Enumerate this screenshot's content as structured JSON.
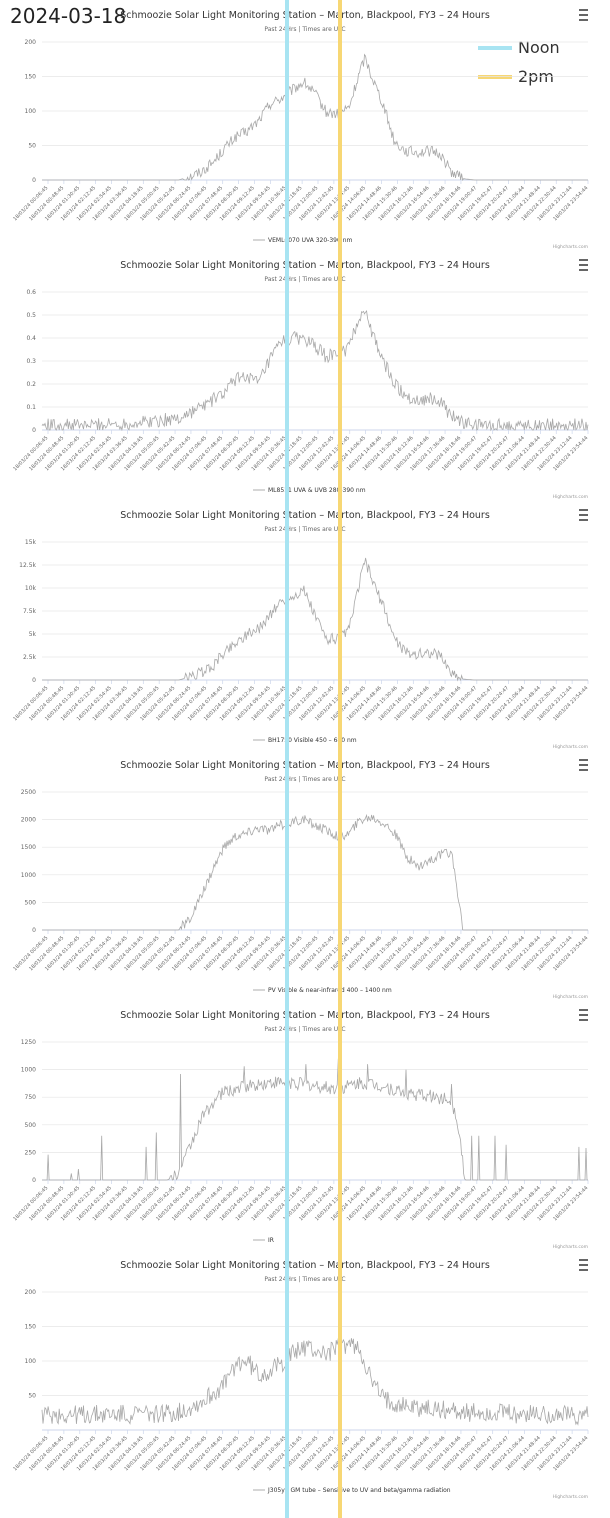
{
  "page": {
    "date": "2024-03-18",
    "legend": [
      {
        "label": "Noon",
        "color": "#a8e4f2"
      },
      {
        "label": "2pm",
        "color": "#f7d774"
      }
    ]
  },
  "chart_data": [
    {
      "type": "line",
      "title": "Schmoozie Solar Light Monitoring Station – Marton, Blackpool, FY3 – 24 Hours",
      "subtitle": "Past 24Hrs | Times are UTC",
      "series_name": "VEML6070 UVA 320-390 nm",
      "credits": "Highcharts.com",
      "ylim": [
        0,
        200
      ],
      "yticks": [
        0,
        50,
        100,
        150,
        200
      ],
      "ytick_labels": [
        "0",
        "50",
        "100",
        "150",
        "200"
      ],
      "xtick_labels": [
        "18/03/24 00:06:45",
        "18/03/24 00:48:45",
        "18/03/24 01:30:45",
        "18/03/24 02:12:45",
        "18/03/24 02:54:45",
        "18/03/24 03:36:45",
        "18/03/24 04:18:45",
        "18/03/24 05:00:45",
        "18/03/24 05:42:45",
        "18/03/24 06:24:45",
        "18/03/24 07:06:45",
        "18/03/24 07:48:45",
        "18/03/24 08:30:45",
        "18/03/24 09:12:45",
        "18/03/24 09:54:45",
        "18/03/24 10:36:45",
        "18/03/24 11:18:45",
        "18/03/24 12:00:45",
        "18/03/24 12:42:45",
        "18/03/24 13:24:45",
        "18/03/24 14:06:45",
        "18/03/24 14:48:46",
        "18/03/24 15:30:46",
        "18/03/24 16:12:46",
        "18/03/24 16:54:46",
        "18/03/24 17:36:46",
        "18/03/24 18:18:46",
        "18/03/24 19:00:47",
        "18/03/24 19:42:47",
        "18/03/24 20:24:47",
        "18/03/24 21:06:44",
        "18/03/24 21:48:44",
        "18/03/24 22:30:44",
        "18/03/24 23:12:44",
        "18/03/24 23:54:44"
      ],
      "x_hours": [
        0,
        2,
        4,
        6,
        6.5,
        7,
        7.5,
        8,
        8.5,
        9,
        9.5,
        10,
        10.5,
        11,
        11.5,
        12,
        12.5,
        13,
        13.5,
        14,
        14.2,
        14.5,
        15,
        15.5,
        16,
        16.5,
        17,
        17.5,
        18,
        18.5,
        19,
        21,
        24
      ],
      "values": [
        0,
        0,
        0,
        0,
        5,
        12,
        25,
        45,
        62,
        70,
        85,
        110,
        118,
        130,
        142,
        125,
        98,
        95,
        105,
        160,
        178,
        150,
        110,
        55,
        42,
        40,
        42,
        38,
        12,
        2,
        0,
        0,
        0
      ],
      "noise": 8
    },
    {
      "type": "line",
      "title": "Schmoozie Solar Light Monitoring Station – Marton, Blackpool, FY3 – 24 Hours",
      "subtitle": "Past 24Hrs | Times are UTC",
      "series_name": "ML8511 UVA & UVB 280-390 nm",
      "credits": "Highcharts.com",
      "ylim": [
        0,
        0.6
      ],
      "yticks": [
        0,
        0.1,
        0.2,
        0.3,
        0.4,
        0.5,
        0.6
      ],
      "ytick_labels": [
        "0",
        "0.1",
        "0.2",
        "0.3",
        "0.4",
        "0.5",
        "0.6"
      ],
      "xtick_labels": [
        "18/03/24 00:06:45",
        "18/03/24 00:48:45",
        "18/03/24 01:30:45",
        "18/03/24 02:12:45",
        "18/03/24 02:54:45",
        "18/03/24 03:36:45",
        "18/03/24 04:18:45",
        "18/03/24 05:00:45",
        "18/03/24 05:42:45",
        "18/03/24 06:24:45",
        "18/03/24 07:06:45",
        "18/03/24 07:48:45",
        "18/03/24 08:30:45",
        "18/03/24 09:12:45",
        "18/03/24 09:54:45",
        "18/03/24 10:36:45",
        "18/03/24 11:18:45",
        "18/03/24 12:00:45",
        "18/03/24 12:42:45",
        "18/03/24 13:24:45",
        "18/03/24 14:06:45",
        "18/03/24 14:48:46",
        "18/03/24 15:30:46",
        "18/03/24 16:12:46",
        "18/03/24 16:54:46",
        "18/03/24 17:36:46",
        "18/03/24 18:18:46",
        "18/03/24 19:00:47",
        "18/03/24 19:42:47",
        "18/03/24 20:24:47",
        "18/03/24 21:06:44",
        "18/03/24 21:48:44",
        "18/03/24 22:30:44",
        "18/03/24 23:12:44",
        "18/03/24 23:54:44"
      ],
      "x_hours": [
        0,
        2,
        4,
        6,
        7,
        8,
        8.5,
        9,
        9.5,
        10,
        10.5,
        11,
        11.5,
        12,
        12.5,
        13,
        13.5,
        14,
        14.2,
        14.5,
        15,
        15.5,
        16,
        16.5,
        17,
        17.5,
        18,
        18.5,
        19,
        21,
        24
      ],
      "values": [
        0.02,
        0.02,
        0.03,
        0.05,
        0.1,
        0.16,
        0.22,
        0.24,
        0.2,
        0.3,
        0.38,
        0.4,
        0.4,
        0.36,
        0.32,
        0.33,
        0.36,
        0.5,
        0.53,
        0.42,
        0.3,
        0.2,
        0.15,
        0.13,
        0.14,
        0.12,
        0.06,
        0.03,
        0.02,
        0.02,
        0.02
      ],
      "noise": 0.03
    },
    {
      "type": "line",
      "title": "Schmoozie Solar Light Monitoring Station – Marton, Blackpool, FY3 – 24 Hours",
      "subtitle": "Past 24Hrs | Times are UTC",
      "series_name": "BH1750 Visible 450 – 680 nm",
      "credits": "Highcharts.com",
      "ylim": [
        0,
        15000
      ],
      "yticks": [
        0,
        2500,
        5000,
        7500,
        10000,
        12500,
        15000
      ],
      "ytick_labels": [
        "0",
        "2.5k",
        "5k",
        "7.5k",
        "10k",
        "12.5k",
        "15k"
      ],
      "xtick_labels": [
        "18/03/24 00:06:45",
        "18/03/24 00:48:45",
        "18/03/24 01:30:45",
        "18/03/24 02:12:45",
        "18/03/24 02:54:45",
        "18/03/24 03:36:45",
        "18/03/24 04:18:45",
        "18/03/24 05:00:45",
        "18/03/24 05:42:45",
        "18/03/24 06:24:45",
        "18/03/24 07:06:45",
        "18/03/24 07:48:45",
        "18/03/24 08:30:45",
        "18/03/24 09:12:45",
        "18/03/24 09:54:45",
        "18/03/24 10:36:45",
        "18/03/24 11:18:45",
        "18/03/24 12:00:45",
        "18/03/24 12:42:45",
        "18/03/24 13:24:45",
        "18/03/24 14:06:45",
        "18/03/24 14:48:46",
        "18/03/24 15:30:46",
        "18/03/24 16:12:46",
        "18/03/24 16:54:46",
        "18/03/24 17:36:46",
        "18/03/24 18:18:46",
        "18/03/24 19:00:47",
        "18/03/24 19:42:47",
        "18/03/24 20:24:47",
        "18/03/24 21:06:44",
        "18/03/24 21:48:44",
        "18/03/24 22:30:44",
        "18/03/24 23:12:44",
        "18/03/24 23:54:44"
      ],
      "x_hours": [
        0,
        2,
        4,
        6,
        6.5,
        7,
        7.5,
        8,
        8.5,
        9,
        9.5,
        10,
        10.5,
        11,
        11.5,
        12,
        12.5,
        13,
        13.5,
        14,
        14.2,
        14.5,
        15,
        15.5,
        16,
        16.5,
        17,
        17.5,
        18,
        18.5,
        19,
        21,
        24
      ],
      "values": [
        0,
        0,
        0,
        0,
        300,
        800,
        1500,
        3000,
        4000,
        5000,
        5500,
        7000,
        8500,
        9000,
        9800,
        7000,
        4500,
        4500,
        5500,
        11000,
        13000,
        11000,
        8000,
        4500,
        3000,
        2800,
        3000,
        2700,
        800,
        100,
        0,
        0,
        0
      ],
      "noise": 600
    },
    {
      "type": "line",
      "title": "Schmoozie Solar Light Monitoring Station – Marton, Blackpool, FY3 – 24 Hours",
      "subtitle": "Past 24Hrs | Times are UTC",
      "series_name": "PV Visible & near-infrared 400 – 1400 nm",
      "credits": "Highcharts.com",
      "ylim": [
        0,
        2500
      ],
      "yticks": [
        0,
        500,
        1000,
        1500,
        2000,
        2500
      ],
      "ytick_labels": [
        "0",
        "500",
        "1000",
        "1500",
        "2000",
        "2500"
      ],
      "xtick_labels": [
        "18/03/24 00:06:45",
        "18/03/24 00:48:45",
        "18/03/24 01:30:45",
        "18/03/24 02:12:45",
        "18/03/24 02:54:45",
        "18/03/24 03:36:45",
        "18/03/24 04:18:45",
        "18/03/24 05:00:45",
        "18/03/24 05:42:45",
        "18/03/24 06:24:45",
        "18/03/24 07:06:45",
        "18/03/24 07:48:45",
        "18/03/24 08:30:45",
        "18/03/24 09:12:45",
        "18/03/24 09:54:45",
        "18/03/24 10:36:45",
        "18/03/24 11:18:45",
        "18/03/24 12:00:45",
        "18/03/24 12:42:45",
        "18/03/24 13:24:45",
        "18/03/24 14:06:45",
        "18/03/24 14:48:46",
        "18/03/24 15:30:46",
        "18/03/24 16:12:46",
        "18/03/24 16:54:46",
        "18/03/24 17:36:46",
        "18/03/24 18:18:46",
        "18/03/24 19:00:47",
        "18/03/24 19:42:47",
        "18/03/24 20:24:47",
        "18/03/24 21:06:44",
        "18/03/24 21:48:44",
        "18/03/24 22:30:44",
        "18/03/24 23:12:44",
        "18/03/24 23:54:44"
      ],
      "x_hours": [
        0,
        2,
        4,
        6,
        6.5,
        7,
        7.5,
        8,
        8.5,
        9,
        9.5,
        10,
        10.5,
        11,
        11.5,
        12,
        12.5,
        13,
        13.5,
        14,
        14.5,
        15,
        15.5,
        16,
        16.5,
        17,
        17.5,
        18,
        18.2,
        18.5,
        19,
        21,
        24
      ],
      "values": [
        0,
        0,
        0,
        0,
        200,
        600,
        1100,
        1500,
        1700,
        1750,
        1850,
        1800,
        1900,
        1950,
        2000,
        1900,
        1800,
        1700,
        1750,
        2000,
        2050,
        1950,
        1750,
        1350,
        1150,
        1250,
        1350,
        1400,
        900,
        0,
        0,
        0,
        0
      ],
      "noise": 90
    },
    {
      "type": "line",
      "title": "Schmoozie Solar Light Monitoring Station – Marton, Blackpool, FY3 – 24 Hours",
      "subtitle": "Past 24Hrs | Times are UTC",
      "series_name": "IR",
      "credits": "Highcharts.com",
      "ylim": [
        0,
        1250
      ],
      "yticks": [
        0,
        250,
        500,
        750,
        1000,
        1250
      ],
      "ytick_labels": [
        "0",
        "250",
        "500",
        "750",
        "1000",
        "1250"
      ],
      "xtick_labels": [
        "18/03/24 00:06:45",
        "18/03/24 00:48:45",
        "18/03/24 01:30:45",
        "18/03/24 02:12:45",
        "18/03/24 02:54:45",
        "18/03/24 03:36:45",
        "18/03/24 04:18:45",
        "18/03/24 05:00:45",
        "18/03/24 05:42:45",
        "18/03/24 06:24:45",
        "18/03/24 07:06:45",
        "18/03/24 07:48:45",
        "18/03/24 08:30:45",
        "18/03/24 09:12:45",
        "18/03/24 09:54:45",
        "18/03/24 10:36:45",
        "18/03/24 11:18:45",
        "18/03/24 12:00:45",
        "18/03/24 12:42:45",
        "18/03/24 13:24:45",
        "18/03/24 14:06:45",
        "18/03/24 14:48:46",
        "18/03/24 15:30:46",
        "18/03/24 16:12:46",
        "18/03/24 16:54:46",
        "18/03/24 17:36:46",
        "18/03/24 18:18:46",
        "18/03/24 19:00:47",
        "18/03/24 19:42:47",
        "18/03/24 20:24:47",
        "18/03/24 21:06:44",
        "18/03/24 21:48:44",
        "18/03/24 22:30:44",
        "18/03/24 23:12:44",
        "18/03/24 23:54:44"
      ],
      "x_hours": [
        0,
        2,
        4,
        5.5,
        6,
        6.5,
        7,
        7.5,
        8,
        9,
        10,
        11,
        12,
        13,
        14,
        15,
        16,
        17,
        17.5,
        18,
        18.3,
        18.6,
        19,
        21,
        24
      ],
      "values": [
        0,
        0,
        0,
        0,
        50,
        300,
        550,
        700,
        800,
        850,
        880,
        880,
        850,
        820,
        880,
        850,
        780,
        760,
        740,
        720,
        500,
        0,
        0,
        0,
        0
      ],
      "noise": 60,
      "spikes": [
        [
          0.25,
          230
        ],
        [
          1.3,
          60
        ],
        [
          1.6,
          100
        ],
        [
          2.6,
          400
        ],
        [
          4.6,
          300
        ],
        [
          5.0,
          430
        ],
        [
          6.1,
          960
        ],
        [
          8.9,
          1030
        ],
        [
          11.6,
          1050
        ],
        [
          13.0,
          1100
        ],
        [
          14.3,
          1050
        ],
        [
          16.0,
          1000
        ],
        [
          18.0,
          870
        ],
        [
          18.9,
          400
        ],
        [
          19.2,
          400
        ],
        [
          19.9,
          400
        ],
        [
          20.4,
          320
        ],
        [
          23.6,
          300
        ],
        [
          23.9,
          290
        ]
      ]
    },
    {
      "type": "line",
      "title": "Schmoozie Solar Light Monitoring Station – Marton, Blackpool, FY3 – 24 Hours",
      "subtitle": "Past 24Hrs | Times are UTC",
      "series_name": "J305yb GM tube – Sensitive to UV and beta/gamma radiation",
      "credits": "Highcharts.com",
      "ylim": [
        0,
        200
      ],
      "yticks": [
        50,
        100,
        150,
        200
      ],
      "ytick_labels": [
        "50",
        "100",
        "150",
        "200"
      ],
      "xtick_labels": [
        "18/03/24 00:06:45",
        "18/03/24 00:48:45",
        "18/03/24 01:30:45",
        "18/03/24 02:12:45",
        "18/03/24 02:54:45",
        "18/03/24 03:36:45",
        "18/03/24 04:18:45",
        "18/03/24 05:00:45",
        "18/03/24 05:42:45",
        "18/03/24 06:24:45",
        "18/03/24 07:06:45",
        "18/03/24 07:48:45",
        "18/03/24 08:30:45",
        "18/03/24 09:12:45",
        "18/03/24 09:54:45",
        "18/03/24 10:36:45",
        "18/03/24 11:18:45",
        "18/03/24 12:00:45",
        "18/03/24 12:42:45",
        "18/03/24 13:24:45",
        "18/03/24 14:06:45",
        "18/03/24 14:48:46",
        "18/03/24 15:30:46",
        "18/03/24 16:12:46",
        "18/03/24 16:54:46",
        "18/03/24 17:36:46",
        "18/03/24 18:18:46",
        "18/03/24 19:00:47",
        "18/03/24 19:42:47",
        "18/03/24 20:24:47",
        "18/03/24 21:06:44",
        "18/03/24 21:48:44",
        "18/03/24 22:30:44",
        "18/03/24 23:12:44",
        "18/03/24 23:54:44"
      ],
      "x_hours": [
        0,
        2,
        4,
        6,
        7,
        8,
        8.5,
        9,
        9.5,
        10,
        10.5,
        11,
        11.5,
        12,
        12.5,
        13,
        13.5,
        14,
        14.5,
        15,
        16,
        17,
        18,
        19,
        21,
        24
      ],
      "values": [
        22,
        22,
        23,
        25,
        40,
        65,
        95,
        100,
        80,
        85,
        95,
        110,
        120,
        115,
        110,
        120,
        125,
        115,
        70,
        45,
        35,
        30,
        28,
        25,
        23,
        22
      ],
      "noise": 14
    }
  ]
}
